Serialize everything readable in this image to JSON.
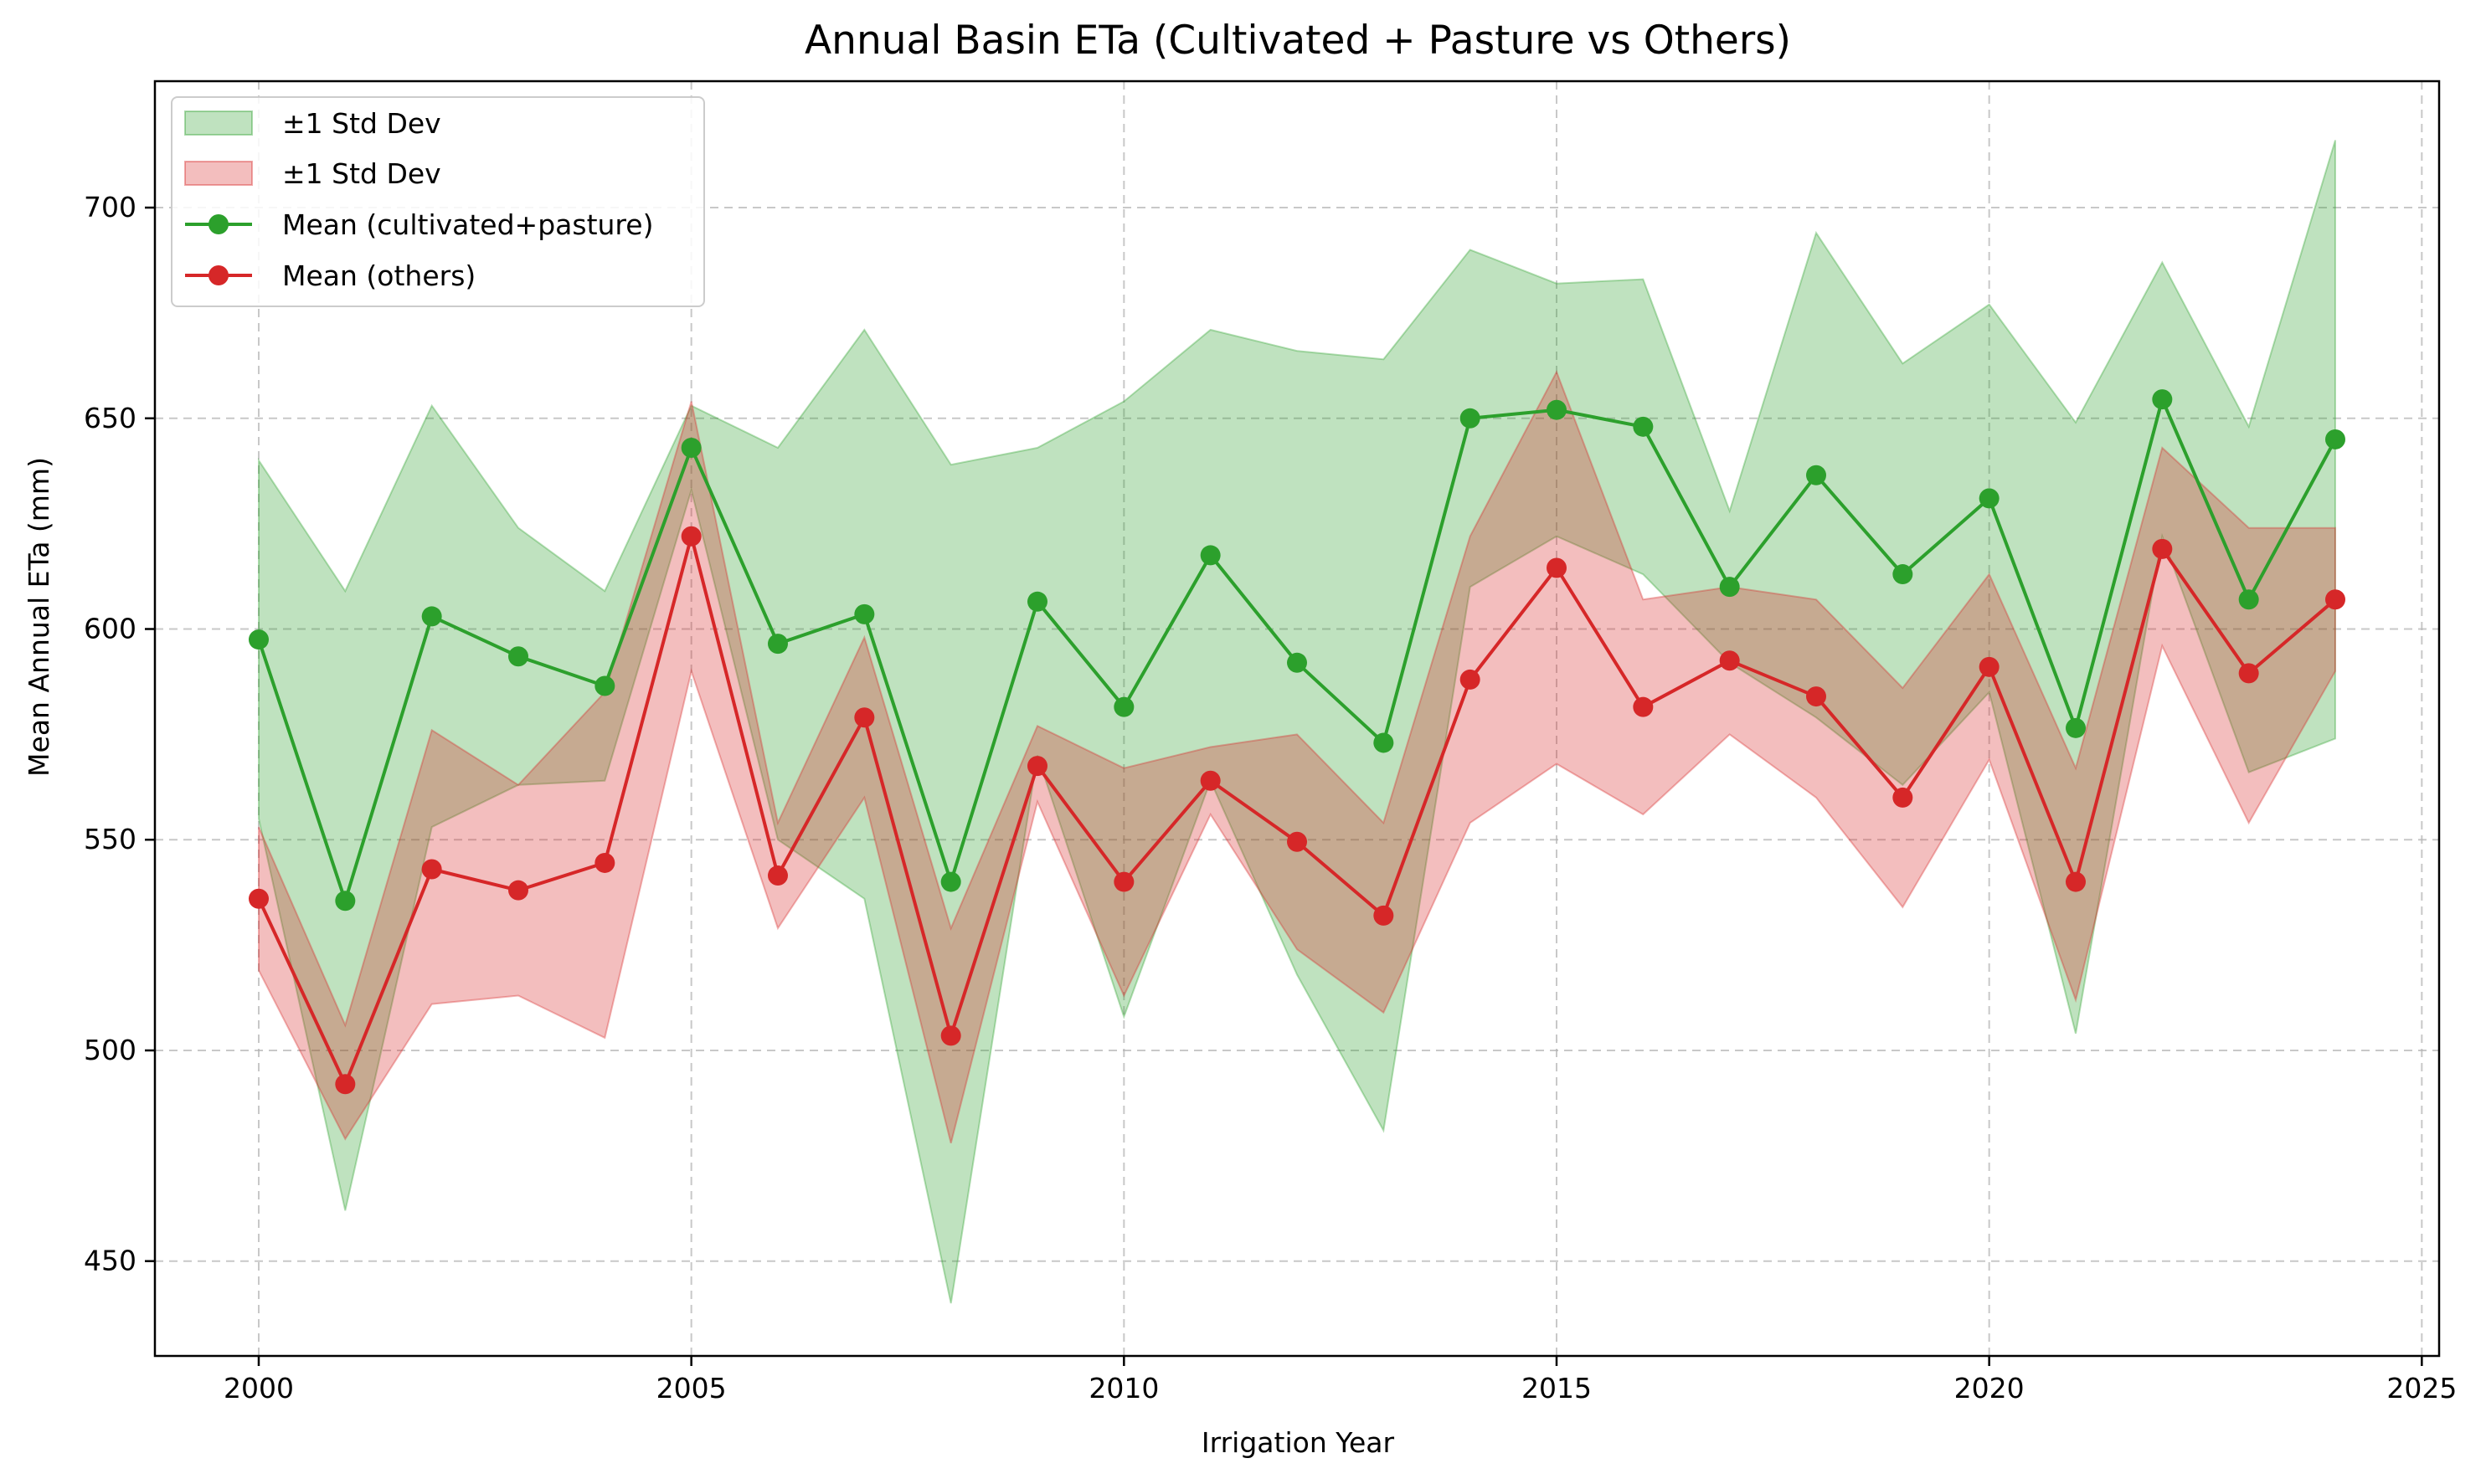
{
  "chart_data": {
    "type": "line",
    "title": "Annual Basin ETa (Cultivated + Pasture vs Others)",
    "xlabel": "Irrigation Year",
    "ylabel": "Mean Annual ETa (mm)",
    "xlim": [
      1998.8,
      2025.2
    ],
    "ylim": [
      427.5,
      730
    ],
    "xticks": [
      2000,
      2005,
      2010,
      2015,
      2020,
      2025
    ],
    "yticks": [
      450,
      500,
      550,
      600,
      650,
      700
    ],
    "grid": true,
    "grid_style": "dashed",
    "legend_position": "top-left",
    "x": [
      2000,
      2001,
      2002,
      2003,
      2004,
      2005,
      2006,
      2007,
      2008,
      2009,
      2010,
      2011,
      2012,
      2013,
      2014,
      2015,
      2016,
      2017,
      2018,
      2019,
      2020,
      2021,
      2022,
      2023,
      2024
    ],
    "series": [
      {
        "name": "Mean (cultivated+pasture)",
        "band_label": "±1 Std Dev",
        "color": "#2ca02c",
        "values": [
          597.5,
          535.5,
          603,
          593.5,
          586.5,
          643,
          596.5,
          603.5,
          540,
          606.5,
          581.5,
          617.5,
          592,
          573,
          650,
          652,
          648,
          610,
          636.5,
          613,
          631,
          576.5,
          654.5,
          607,
          645
        ],
        "upper": [
          640,
          609,
          653,
          624,
          609,
          653,
          643,
          671,
          639,
          643,
          654,
          671,
          666,
          664,
          690,
          682,
          683,
          628,
          694,
          663,
          677,
          649,
          687,
          648,
          716
        ],
        "lower": [
          555,
          462,
          553,
          563,
          564,
          633,
          550,
          536,
          440,
          570,
          508,
          564,
          518,
          481,
          610,
          622,
          613,
          592,
          579,
          563,
          585,
          504,
          622,
          566,
          574
        ]
      },
      {
        "name": "Mean (others)",
        "band_label": "±1 Std Dev",
        "color": "#d62728",
        "values": [
          536,
          492,
          543,
          538,
          544.5,
          622,
          541.5,
          579,
          503.5,
          567.5,
          540,
          564,
          549.5,
          532,
          588,
          614.5,
          581.5,
          592.5,
          584,
          560,
          591,
          540,
          619,
          589.5,
          607
        ],
        "upper": [
          553,
          506,
          576,
          563,
          585,
          654,
          554,
          598,
          529,
          577,
          567,
          572,
          575,
          554,
          622,
          661,
          607,
          610,
          607,
          586,
          613,
          567,
          643,
          624,
          624
        ],
        "lower": [
          519,
          479,
          511,
          513,
          503,
          590,
          529,
          560,
          478,
          559,
          513,
          556,
          524,
          509,
          554,
          568,
          556,
          575,
          560,
          534,
          569,
          512,
          596,
          554,
          590
        ]
      }
    ]
  }
}
